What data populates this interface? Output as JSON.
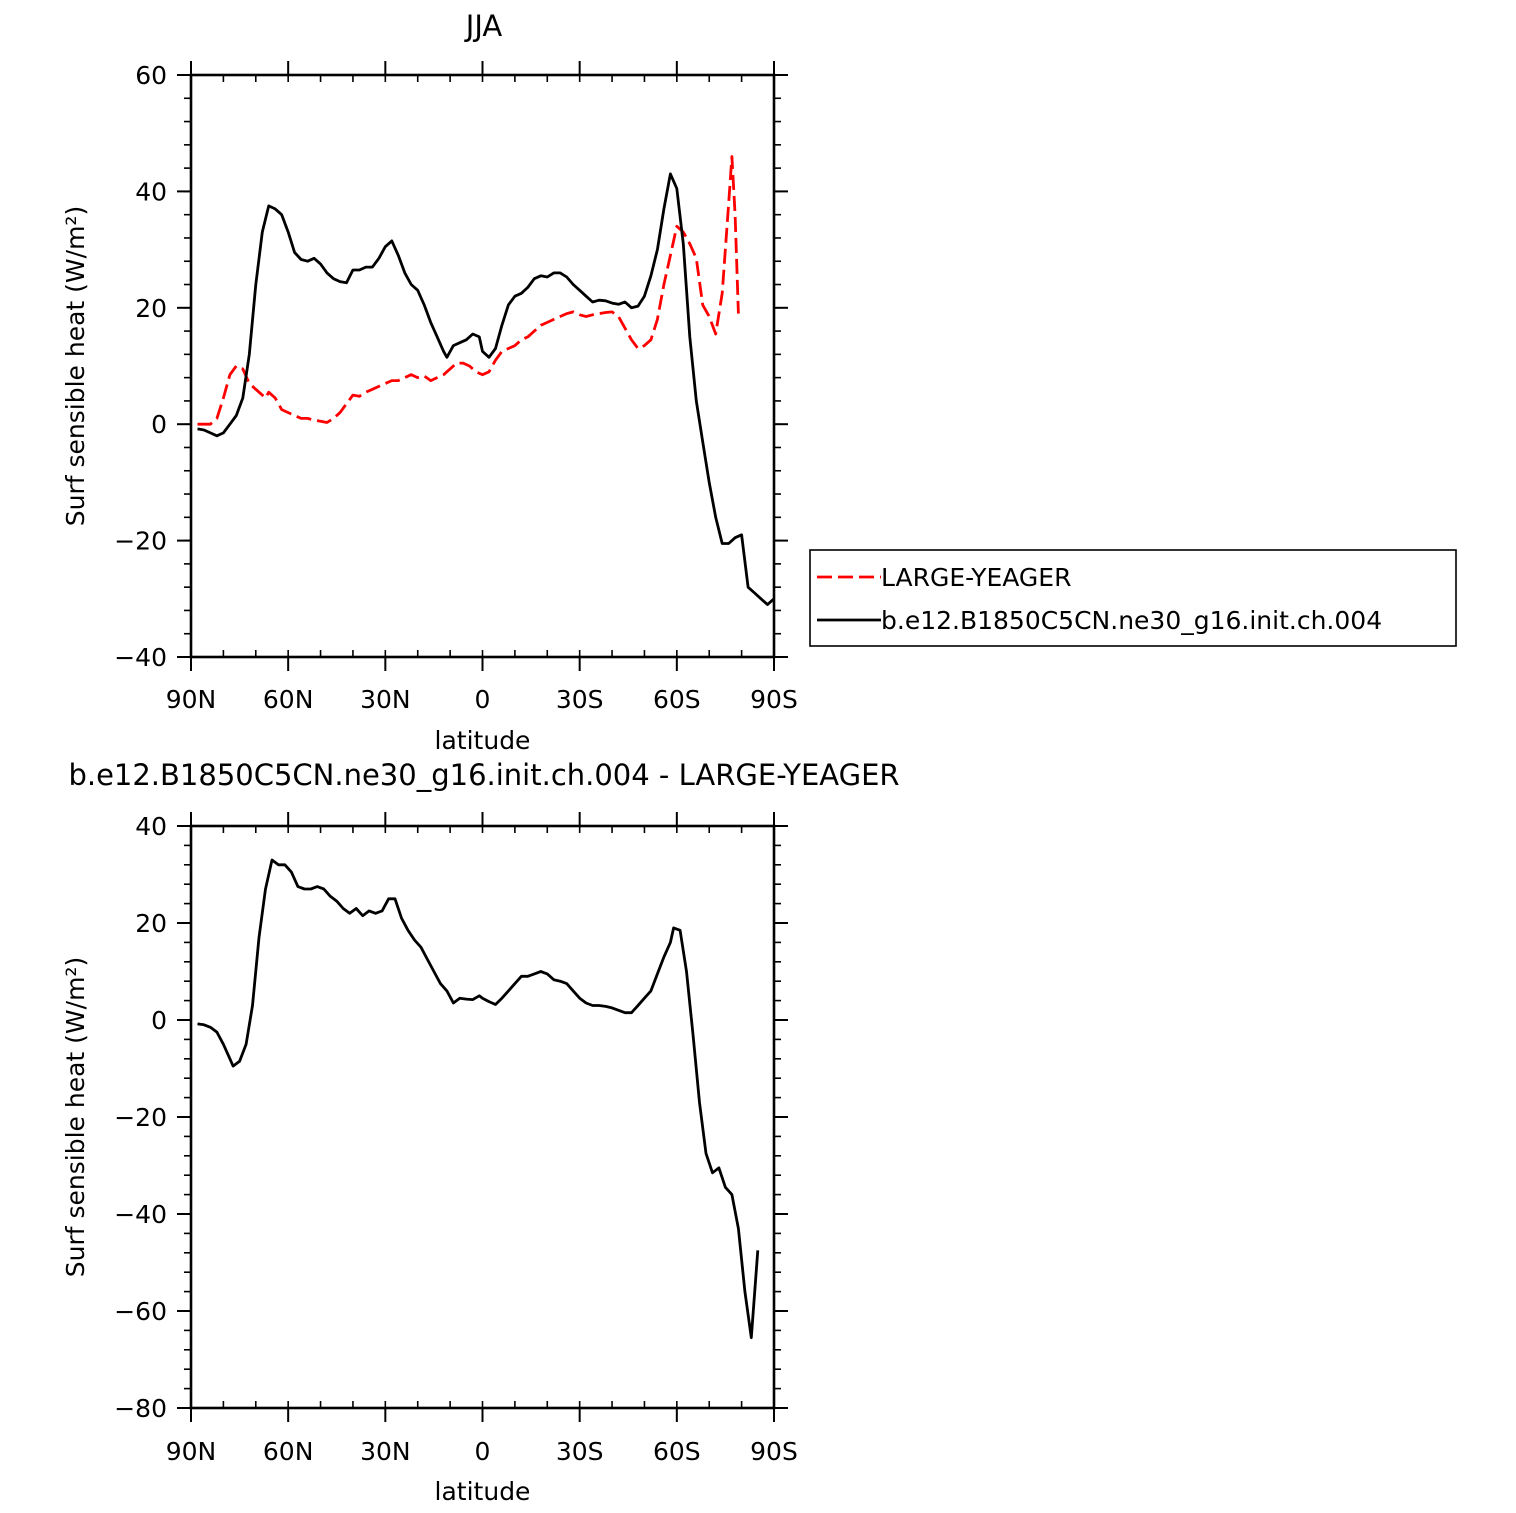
{
  "colors": {
    "control_line": "#ff0000",
    "case_line": "#000000",
    "frame": "#000000"
  },
  "legend": {
    "placement": "right of top panel",
    "entries": [
      "LARGE-YEAGER",
      "b.e12.B1850C5CN.ne30_g16.init.ch.004"
    ]
  },
  "chart_data": [
    {
      "type": "line",
      "title": "JJA",
      "xlabel": "latitude",
      "ylabel": "Surf sensible heat (W/m²)",
      "x_tick_labels": [
        "90N",
        "60N",
        "30N",
        "0",
        "30S",
        "60S",
        "90S"
      ],
      "x_tick_values": [
        90,
        60,
        30,
        0,
        -30,
        -60,
        -90
      ],
      "xlim": [
        90,
        -90
      ],
      "ylim": [
        -40,
        60
      ],
      "y_ticks": [
        -40,
        -20,
        0,
        20,
        40,
        60
      ],
      "series": [
        {
          "name": "LARGE-YEAGER",
          "style": "dashed",
          "color": "#ff0000",
          "points": [
            [
              88,
              0
            ],
            [
              84,
              0
            ],
            [
              82,
              1
            ],
            [
              80,
              4.5
            ],
            [
              78,
              8.5
            ],
            [
              76,
              10
            ],
            [
              74,
              9.5
            ],
            [
              72,
              7
            ],
            [
              70,
              6
            ],
            [
              68,
              5
            ],
            [
              67,
              4.5
            ],
            [
              66,
              5.5
            ],
            [
              64,
              4.5
            ],
            [
              62,
              2.5
            ],
            [
              60,
              2
            ],
            [
              58,
              1.5
            ],
            [
              56,
              1
            ],
            [
              54,
              1
            ],
            [
              52,
              0.7
            ],
            [
              50,
              0.5
            ],
            [
              48,
              0.3
            ],
            [
              46,
              1
            ],
            [
              44,
              2
            ],
            [
              42,
              3.5
            ],
            [
              40,
              5
            ],
            [
              38,
              4.8
            ],
            [
              36,
              5.5
            ],
            [
              34,
              6
            ],
            [
              32,
              6.5
            ],
            [
              30,
              7
            ],
            [
              28,
              7.5
            ],
            [
              26,
              7.5
            ],
            [
              24,
              8
            ],
            [
              22,
              8.5
            ],
            [
              20,
              8
            ],
            [
              18,
              8.3
            ],
            [
              16,
              7.5
            ],
            [
              14,
              8
            ],
            [
              12,
              8.5
            ],
            [
              10,
              9.5
            ],
            [
              8,
              10.5
            ],
            [
              6,
              10.5
            ],
            [
              4,
              10
            ],
            [
              2,
              9
            ],
            [
              0,
              8.5
            ],
            [
              -2,
              9
            ],
            [
              -4,
              11
            ],
            [
              -6,
              12.5
            ],
            [
              -8,
              13
            ],
            [
              -10,
              13.5
            ],
            [
              -12,
              14.5
            ],
            [
              -14,
              15
            ],
            [
              -16,
              16
            ],
            [
              -18,
              17
            ],
            [
              -20,
              17.5
            ],
            [
              -22,
              18
            ],
            [
              -24,
              18.5
            ],
            [
              -26,
              19
            ],
            [
              -28,
              19.3
            ],
            [
              -30,
              18.8
            ],
            [
              -32,
              18.5
            ],
            [
              -34,
              18.8
            ],
            [
              -36,
              19
            ],
            [
              -38,
              19.2
            ],
            [
              -40,
              19.3
            ],
            [
              -42,
              18.5
            ],
            [
              -44,
              16.5
            ],
            [
              -46,
              14.5
            ],
            [
              -48,
              13
            ],
            [
              -50,
              13.5
            ],
            [
              -52,
              14.5
            ],
            [
              -54,
              18
            ],
            [
              -56,
              24
            ],
            [
              -58,
              29
            ],
            [
              -60,
              34
            ],
            [
              -62,
              33
            ],
            [
              -64,
              31
            ],
            [
              -66,
              28.5
            ],
            [
              -68,
              20.5
            ],
            [
              -70,
              18.5
            ],
            [
              -72,
              15.5
            ],
            [
              -74,
              22.5
            ],
            [
              -76,
              38
            ],
            [
              -77,
              46
            ],
            [
              -78,
              36
            ],
            [
              -79,
              19
            ]
          ]
        },
        {
          "name": "b.e12.B1850C5CN.ne30_g16.init.ch.004",
          "style": "solid",
          "color": "#000000",
          "points": [
            [
              88,
              -0.8
            ],
            [
              86,
              -1
            ],
            [
              84,
              -1.5
            ],
            [
              82,
              -2
            ],
            [
              80,
              -1.5
            ],
            [
              78,
              0
            ],
            [
              76,
              1.5
            ],
            [
              74,
              4.5
            ],
            [
              72,
              12
            ],
            [
              70,
              24
            ],
            [
              68,
              33
            ],
            [
              66,
              37.5
            ],
            [
              64,
              37
            ],
            [
              62,
              36
            ],
            [
              60,
              33
            ],
            [
              58,
              29.5
            ],
            [
              56,
              28.3
            ],
            [
              54,
              28
            ],
            [
              52,
              28.5
            ],
            [
              50,
              27.5
            ],
            [
              48,
              26
            ],
            [
              46,
              25
            ],
            [
              44,
              24.5
            ],
            [
              42,
              24.3
            ],
            [
              40,
              26.5
            ],
            [
              38,
              26.5
            ],
            [
              36,
              27
            ],
            [
              34,
              27
            ],
            [
              32,
              28.5
            ],
            [
              30,
              30.5
            ],
            [
              28,
              31.5
            ],
            [
              26,
              29
            ],
            [
              24,
              26
            ],
            [
              22,
              24
            ],
            [
              20,
              23
            ],
            [
              18,
              20.5
            ],
            [
              16,
              17.5
            ],
            [
              14,
              15
            ],
            [
              12,
              12.5
            ],
            [
              11,
              11.5
            ],
            [
              9,
              13.5
            ],
            [
              7,
              14
            ],
            [
              5,
              14.5
            ],
            [
              3,
              15.5
            ],
            [
              1,
              15
            ],
            [
              0,
              12.5
            ],
            [
              -2,
              11.5
            ],
            [
              -4,
              13
            ],
            [
              -6,
              17
            ],
            [
              -8,
              20.5
            ],
            [
              -10,
              22
            ],
            [
              -12,
              22.5
            ],
            [
              -14,
              23.5
            ],
            [
              -16,
              25
            ],
            [
              -18,
              25.5
            ],
            [
              -20,
              25.3
            ],
            [
              -22,
              26
            ],
            [
              -24,
              26
            ],
            [
              -26,
              25.3
            ],
            [
              -28,
              24
            ],
            [
              -30,
              23
            ],
            [
              -32,
              22
            ],
            [
              -34,
              21
            ],
            [
              -36,
              21.3
            ],
            [
              -38,
              21.2
            ],
            [
              -40,
              20.8
            ],
            [
              -42,
              20.6
            ],
            [
              -44,
              21
            ],
            [
              -46,
              20
            ],
            [
              -48,
              20.3
            ],
            [
              -50,
              22
            ],
            [
              -52,
              25.5
            ],
            [
              -54,
              30
            ],
            [
              -56,
              37
            ],
            [
              -58,
              43
            ],
            [
              -60,
              40.5
            ],
            [
              -62,
              31
            ],
            [
              -64,
              15
            ],
            [
              -66,
              4
            ],
            [
              -68,
              -3
            ],
            [
              -70,
              -10
            ],
            [
              -72,
              -16
            ],
            [
              -74,
              -20.5
            ],
            [
              -76,
              -20.5
            ],
            [
              -78,
              -19.5
            ],
            [
              -80,
              -19
            ],
            [
              -82,
              -28
            ],
            [
              -84,
              -29
            ],
            [
              -86,
              -30
            ],
            [
              -88,
              -31
            ],
            [
              -90,
              -30
            ],
            [
              -92,
              -28
            ]
          ]
        }
      ]
    },
    {
      "type": "line",
      "title": "b.e12.B1850C5CN.ne30_g16.init.ch.004 - LARGE-YEAGER",
      "xlabel": "latitude",
      "ylabel": "Surf sensible heat (W/m²)",
      "x_tick_labels": [
        "90N",
        "60N",
        "30N",
        "0",
        "30S",
        "60S",
        "90S"
      ],
      "x_tick_values": [
        90,
        60,
        30,
        0,
        -30,
        -60,
        -90
      ],
      "xlim": [
        90,
        -90
      ],
      "ylim": [
        -80,
        40
      ],
      "y_ticks": [
        -80,
        -60,
        -40,
        -20,
        0,
        20,
        40
      ],
      "series": [
        {
          "style": "solid",
          "color": "#000000",
          "points": [
            [
              88,
              -0.8
            ],
            [
              86,
              -1
            ],
            [
              84,
              -1.5
            ],
            [
              82,
              -2.5
            ],
            [
              80,
              -5
            ],
            [
              78,
              -8
            ],
            [
              77,
              -9.5
            ],
            [
              75,
              -8.5
            ],
            [
              73,
              -5
            ],
            [
              71,
              3
            ],
            [
              69,
              17
            ],
            [
              67,
              27
            ],
            [
              65,
              33
            ],
            [
              63,
              32
            ],
            [
              61,
              32
            ],
            [
              59,
              30.5
            ],
            [
              57,
              27.5
            ],
            [
              55,
              27
            ],
            [
              53,
              27
            ],
            [
              51,
              27.5
            ],
            [
              49,
              27
            ],
            [
              47,
              25.5
            ],
            [
              45,
              24.5
            ],
            [
              43,
              23
            ],
            [
              41,
              22
            ],
            [
              39,
              23
            ],
            [
              37,
              21.5
            ],
            [
              35,
              22.5
            ],
            [
              33,
              22
            ],
            [
              31,
              22.5
            ],
            [
              29,
              25
            ],
            [
              27,
              25
            ],
            [
              25,
              21
            ],
            [
              23,
              18.5
            ],
            [
              21,
              16.5
            ],
            [
              19,
              15
            ],
            [
              17,
              12.5
            ],
            [
              15,
              10
            ],
            [
              13,
              7.5
            ],
            [
              11,
              6
            ],
            [
              9,
              3.5
            ],
            [
              7,
              4.5
            ],
            [
              5,
              4.3
            ],
            [
              3,
              4.2
            ],
            [
              1,
              5
            ],
            [
              0,
              4.5
            ],
            [
              -2,
              3.8
            ],
            [
              -4,
              3.2
            ],
            [
              -6,
              4.5
            ],
            [
              -8,
              6
            ],
            [
              -10,
              7.5
            ],
            [
              -12,
              9
            ],
            [
              -14,
              9
            ],
            [
              -16,
              9.5
            ],
            [
              -18,
              10
            ],
            [
              -20,
              9.5
            ],
            [
              -22,
              8.3
            ],
            [
              -24,
              8
            ],
            [
              -26,
              7.5
            ],
            [
              -28,
              6
            ],
            [
              -30,
              4.5
            ],
            [
              -32,
              3.5
            ],
            [
              -34,
              3
            ],
            [
              -36,
              3
            ],
            [
              -38,
              2.8
            ],
            [
              -40,
              2.5
            ],
            [
              -42,
              2
            ],
            [
              -44,
              1.5
            ],
            [
              -46,
              1.5
            ],
            [
              -48,
              3
            ],
            [
              -50,
              4.5
            ],
            [
              -52,
              6
            ],
            [
              -54,
              9.5
            ],
            [
              -56,
              13
            ],
            [
              -58,
              16
            ],
            [
              -59,
              19
            ],
            [
              -61,
              18.5
            ],
            [
              -63,
              10
            ],
            [
              -65,
              -3
            ],
            [
              -67,
              -17
            ],
            [
              -69,
              -27.5
            ],
            [
              -71,
              -31.5
            ],
            [
              -73,
              -30.5
            ],
            [
              -75,
              -34.5
            ],
            [
              -77,
              -36
            ],
            [
              -79,
              -43
            ],
            [
              -81,
              -56
            ],
            [
              -83,
              -65.5
            ],
            [
              -85,
              -47.5
            ]
          ]
        }
      ]
    }
  ]
}
